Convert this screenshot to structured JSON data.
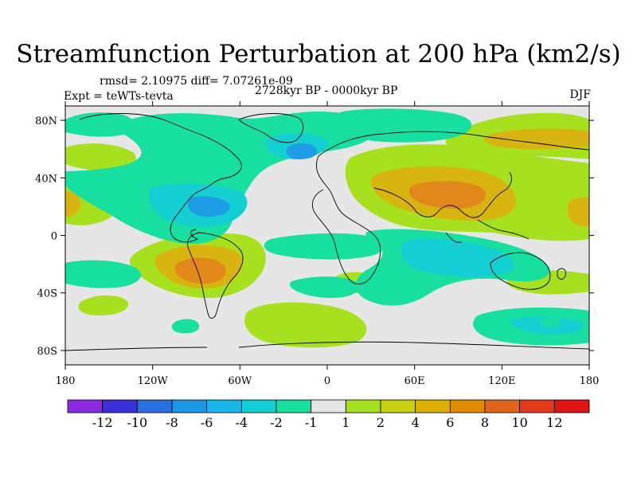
{
  "title": "Streamfunction Perturbation at 200 hPa (km2/s)",
  "stats": "rmsd= 2.10975 diff= 7.07261e-09",
  "experiment": "Expt = teWTs-tevta",
  "period": "2728kyr BP - 0000kyr BP",
  "season": "DJF",
  "lat_labels": [
    "80N",
    "40N",
    "0",
    "40S",
    "80S"
  ],
  "lon_labels": [
    "180",
    "120W",
    "60W",
    "0",
    "60E",
    "120E",
    "180"
  ],
  "colorbar": {
    "labels": [
      "-12",
      "-10",
      "-8",
      "-6",
      "-4",
      "-2",
      "-1",
      "1",
      "2",
      "4",
      "6",
      "8",
      "10",
      "12"
    ],
    "colors": [
      "#8a2be2",
      "#3a2fd8",
      "#2a6fe0",
      "#1e96e6",
      "#19b6ea",
      "#14cfd2",
      "#16dfa0",
      "#e6e6e6",
      "#a6e01e",
      "#c8d010",
      "#dcb000",
      "#e08a00",
      "#e0661e",
      "#e03a1a",
      "#e01414"
    ]
  },
  "colors": {
    "neutral": "#e6e6e6",
    "pos_light": "#a6e01e",
    "pos_mid": "#d8b410",
    "pos_strong": "#e2881a",
    "neg_light": "#16dfa0",
    "neg_mid": "#14cfd2",
    "neg_strong": "#1e9ce6"
  }
}
